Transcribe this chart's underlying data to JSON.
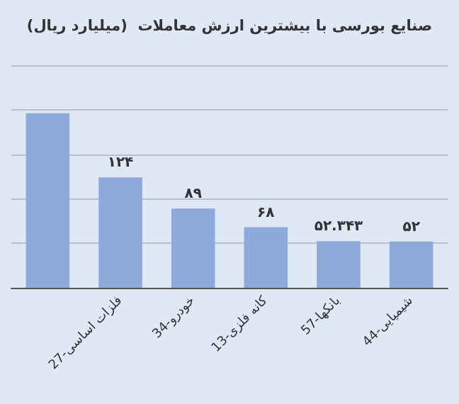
{
  "chart_data": {
    "type": "bar",
    "title": "صنایع بورسی با بیشترین ارزش معاملات  (میلیارد ریال)",
    "categories": [
      null,
      "27-فلزات اساسی",
      "34-خودرو",
      "13-کانه فلزی",
      "57-بانکها",
      "44-شیمیایی"
    ],
    "values": [
      196,
      124,
      89,
      68,
      52.343,
      52
    ],
    "value_labels": [
      null,
      "۱۲۴",
      "۸۹",
      "۶۸",
      "۵۲.۳۴۳",
      "۵۲"
    ],
    "color": "#8eaadb",
    "ylim": [
      0,
      250
    ],
    "yticks": [
      {
        "value": 0,
        "label": null
      },
      {
        "value": 50,
        "label": null
      },
      {
        "value": 100,
        "label": null
      },
      {
        "value": 150,
        "label": null
      },
      {
        "value": 200,
        "label": null
      },
      {
        "value": 250,
        "label": null
      }
    ],
    "grid": "y",
    "tick_labels": "x"
  }
}
